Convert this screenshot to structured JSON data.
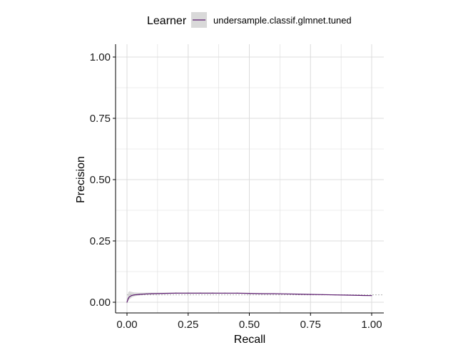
{
  "legend": {
    "title": "Learner",
    "entries": [
      "undersample.classif.glmnet.tuned"
    ]
  },
  "colors": {
    "series_line": "#5b1a6e",
    "ribbon": "#bfbfbf",
    "grid": "#dcdcdc",
    "baseline": "#b0b0b0",
    "axis": "#000000"
  },
  "chart_data": {
    "type": "line",
    "xlabel": "Recall",
    "ylabel": "Precision",
    "xlim": [
      0,
      1
    ],
    "ylim": [
      0,
      1
    ],
    "x_ticks": [
      0,
      0.25,
      0.5,
      0.75,
      1
    ],
    "x_tick_labels": [
      "0.00",
      "0.25",
      "0.50",
      "0.75",
      "1.00"
    ],
    "y_ticks": [
      0,
      0.25,
      0.5,
      0.75,
      1
    ],
    "y_tick_labels": [
      "0.00",
      "0.25",
      "0.50",
      "0.75",
      "1.00"
    ],
    "grid": true,
    "legend_position": "top",
    "baseline_precision": 0.03,
    "series": [
      {
        "name": "undersample.classif.glmnet.tuned",
        "x": [
          0.0,
          0.005,
          0.01,
          0.02,
          0.03,
          0.05,
          0.08,
          0.1,
          0.15,
          0.2,
          0.25,
          0.3,
          0.35,
          0.4,
          0.45,
          0.5,
          0.55,
          0.6,
          0.65,
          0.7,
          0.75,
          0.8,
          0.85,
          0.9,
          0.95,
          1.0
        ],
        "y": [
          0.0,
          0.015,
          0.022,
          0.028,
          0.03,
          0.032,
          0.034,
          0.035,
          0.036,
          0.037,
          0.037,
          0.037,
          0.037,
          0.037,
          0.037,
          0.036,
          0.035,
          0.035,
          0.034,
          0.033,
          0.032,
          0.031,
          0.03,
          0.029,
          0.028,
          0.027
        ],
        "y_lower": [
          0.0,
          0.005,
          0.012,
          0.02,
          0.024,
          0.028,
          0.031,
          0.032,
          0.034,
          0.035,
          0.035,
          0.035,
          0.035,
          0.035,
          0.035,
          0.035,
          0.034,
          0.034,
          0.033,
          0.032,
          0.031,
          0.03,
          0.029,
          0.028,
          0.027,
          0.027
        ],
        "y_upper": [
          0.0,
          0.04,
          0.045,
          0.042,
          0.04,
          0.039,
          0.039,
          0.039,
          0.039,
          0.04,
          0.04,
          0.04,
          0.04,
          0.039,
          0.039,
          0.038,
          0.037,
          0.036,
          0.035,
          0.034,
          0.033,
          0.032,
          0.031,
          0.03,
          0.029,
          0.027
        ]
      }
    ]
  }
}
